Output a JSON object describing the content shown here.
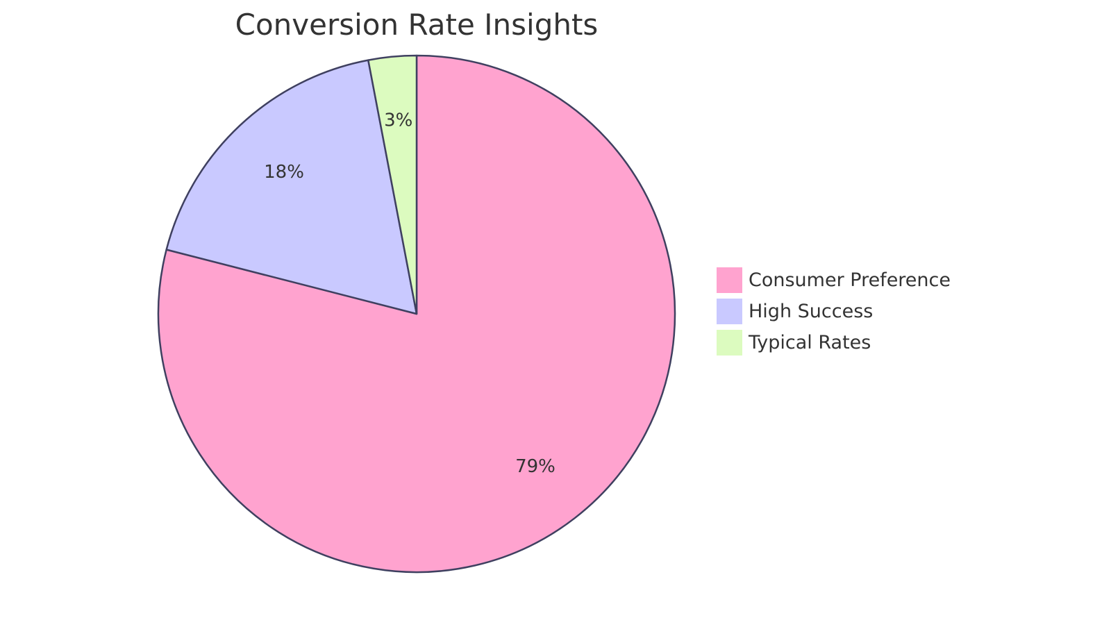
{
  "chart_data": {
    "type": "pie",
    "title": "Conversion Rate Insights",
    "start_angle_deg": 0,
    "direction": "clockwise",
    "legend_position": "right",
    "stroke_color": "#3f4060",
    "slices": [
      {
        "name": "Consumer Preference",
        "value": 79,
        "label": "79%",
        "color": "#ffa3cf"
      },
      {
        "name": "High Success",
        "value": 18,
        "label": "18%",
        "color": "#c9c9ff"
      },
      {
        "name": "Typical Rates",
        "value": 3,
        "label": "3%",
        "color": "#dcfbbf"
      }
    ]
  }
}
